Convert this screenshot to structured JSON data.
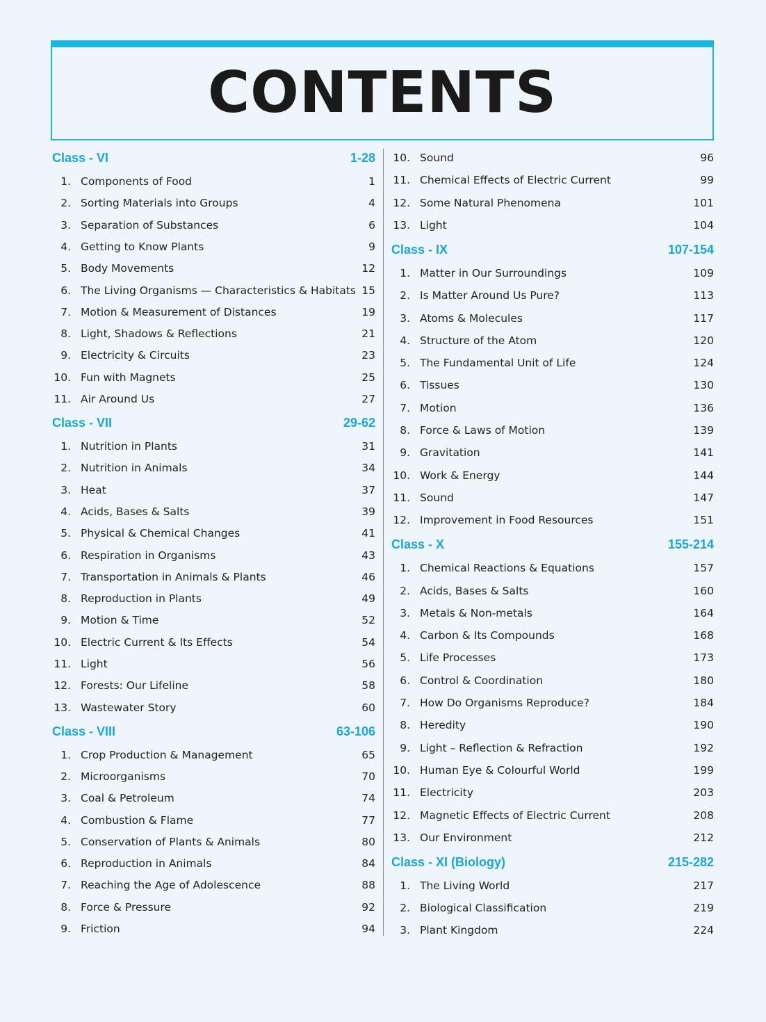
{
  "header": {
    "title": "CONTENTS"
  },
  "columns": [
    {
      "blocks": [
        {
          "title": "Class - VI",
          "pages": "1-28",
          "items": [
            {
              "number": "1.",
              "title": "Components of Food",
              "page": 1
            },
            {
              "number": "2.",
              "title": "Sorting Materials into Groups",
              "page": 4
            },
            {
              "number": "3.",
              "title": "Separation of Substances",
              "page": 6
            },
            {
              "number": "4.",
              "title": "Getting to Know Plants",
              "page": 9
            },
            {
              "number": "5.",
              "title": "Body Movements",
              "page": 12
            },
            {
              "number": "6.",
              "title": "The Living Organisms — Characteristics & Habitats",
              "page": 15
            },
            {
              "number": "7.",
              "title": "Motion & Measurement of Distances",
              "page": 19
            },
            {
              "number": "8.",
              "title": "Light, Shadows & Reflections",
              "page": 21
            },
            {
              "number": "9.",
              "title": "Electricity & Circuits",
              "page": 23
            },
            {
              "number": "10.",
              "title": "Fun with Magnets",
              "page": 25
            },
            {
              "number": "11.",
              "title": "Air Around Us",
              "page": 27
            }
          ]
        },
        {
          "title": "Class - VII",
          "pages": "29-62",
          "items": [
            {
              "number": "1.",
              "title": "Nutrition in Plants",
              "page": 31
            },
            {
              "number": "2.",
              "title": "Nutrition in Animals",
              "page": 34
            },
            {
              "number": "3.",
              "title": "Heat",
              "page": 37
            },
            {
              "number": "4.",
              "title": "Acids, Bases & Salts",
              "page": 39
            },
            {
              "number": "5.",
              "title": "Physical & Chemical Changes",
              "page": 41
            },
            {
              "number": "6.",
              "title": "Respiration in Organisms",
              "page": 43
            },
            {
              "number": "7.",
              "title": "Transportation in Animals & Plants",
              "page": 46
            },
            {
              "number": "8.",
              "title": "Reproduction in Plants",
              "page": 49
            },
            {
              "number": "9.",
              "title": "Motion & Time",
              "page": 52
            },
            {
              "number": "10.",
              "title": "Electric Current & Its Effects",
              "page": 54
            },
            {
              "number": "11.",
              "title": "Light",
              "page": 56
            },
            {
              "number": "12.",
              "title": "Forests: Our Lifeline",
              "page": 58
            },
            {
              "number": "13.",
              "title": "Wastewater Story",
              "page": 60
            }
          ]
        },
        {
          "title": "Class - VIII",
          "pages": "63-106",
          "items": [
            {
              "number": "1.",
              "title": "Crop Production & Management",
              "page": 65
            },
            {
              "number": "2.",
              "title": "Microorganisms",
              "page": 70
            },
            {
              "number": "3.",
              "title": "Coal & Petroleum",
              "page": 74
            },
            {
              "number": "4.",
              "title": "Combustion & Flame",
              "page": 77
            },
            {
              "number": "5.",
              "title": "Conservation of Plants & Animals",
              "page": 80
            },
            {
              "number": "6.",
              "title": "Reproduction in Animals",
              "page": 84
            },
            {
              "number": "7.",
              "title": "Reaching the Age of Adolescence",
              "page": 88
            },
            {
              "number": "8.",
              "title": "Force & Pressure",
              "page": 92
            },
            {
              "number": "9.",
              "title": "Friction",
              "page": 94
            }
          ]
        }
      ]
    },
    {
      "blocks": [
        {
          "items": [
            {
              "number": "10.",
              "title": "Sound",
              "page": 96
            },
            {
              "number": "11.",
              "title": "Chemical Effects of Electric Current",
              "page": 99
            },
            {
              "number": "12.",
              "title": "Some Natural Phenomena",
              "page": 101
            },
            {
              "number": "13.",
              "title": "Light",
              "page": 104
            }
          ]
        },
        {
          "title": "Class - IX",
          "pages": "107-154",
          "items": [
            {
              "number": "1.",
              "title": "Matter in Our Surroundings",
              "page": 109
            },
            {
              "number": "2.",
              "title": "Is Matter Around Us Pure?",
              "page": 113
            },
            {
              "number": "3.",
              "title": "Atoms & Molecules",
              "page": 117
            },
            {
              "number": "4.",
              "title": "Structure of the Atom",
              "page": 120
            },
            {
              "number": "5.",
              "title": "The Fundamental Unit of Life",
              "page": 124
            },
            {
              "number": "6.",
              "title": "Tissues",
              "page": 130
            },
            {
              "number": "7.",
              "title": "Motion",
              "page": 136
            },
            {
              "number": "8.",
              "title": "Force & Laws of Motion",
              "page": 139
            },
            {
              "number": "9.",
              "title": "Gravitation",
              "page": 141
            },
            {
              "number": "10.",
              "title": "Work & Energy",
              "page": 144
            },
            {
              "number": "11.",
              "title": "Sound",
              "page": 147
            },
            {
              "number": "12.",
              "title": "Improvement in Food Resources",
              "page": 151
            }
          ]
        },
        {
          "title": "Class - X",
          "pages": "155-214",
          "items": [
            {
              "number": "1.",
              "title": "Chemical Reactions & Equations",
              "page": 157
            },
            {
              "number": "2.",
              "title": "Acids, Bases & Salts",
              "page": 160
            },
            {
              "number": "3.",
              "title": "Metals & Non-metals",
              "page": 164
            },
            {
              "number": "4.",
              "title": "Carbon & Its Compounds",
              "page": 168
            },
            {
              "number": "5.",
              "title": "Life Processes",
              "page": 173
            },
            {
              "number": "6.",
              "title": "Control & Coordination",
              "page": 180
            },
            {
              "number": "7.",
              "title": "How Do Organisms Reproduce?",
              "page": 184
            },
            {
              "number": "8.",
              "title": "Heredity",
              "page": 190
            },
            {
              "number": "9.",
              "title": "Light – Reflection & Refraction",
              "page": 192
            },
            {
              "number": "10.",
              "title": "Human Eye & Colourful World",
              "page": 199
            },
            {
              "number": "11.",
              "title": "Electricity",
              "page": 203
            },
            {
              "number": "12.",
              "title": "Magnetic Effects of Electric Current",
              "page": 208
            },
            {
              "number": "13.",
              "title": "Our Environment",
              "page": 212
            }
          ]
        },
        {
          "title": "Class - XI (Biology)",
          "pages": "215-282",
          "items": [
            {
              "number": "1.",
              "title": "The Living World",
              "page": 217
            },
            {
              "number": "2.",
              "title": "Biological Classification",
              "page": 219
            },
            {
              "number": "3.",
              "title": "Plant Kingdom",
              "page": 224
            }
          ]
        }
      ]
    }
  ]
}
